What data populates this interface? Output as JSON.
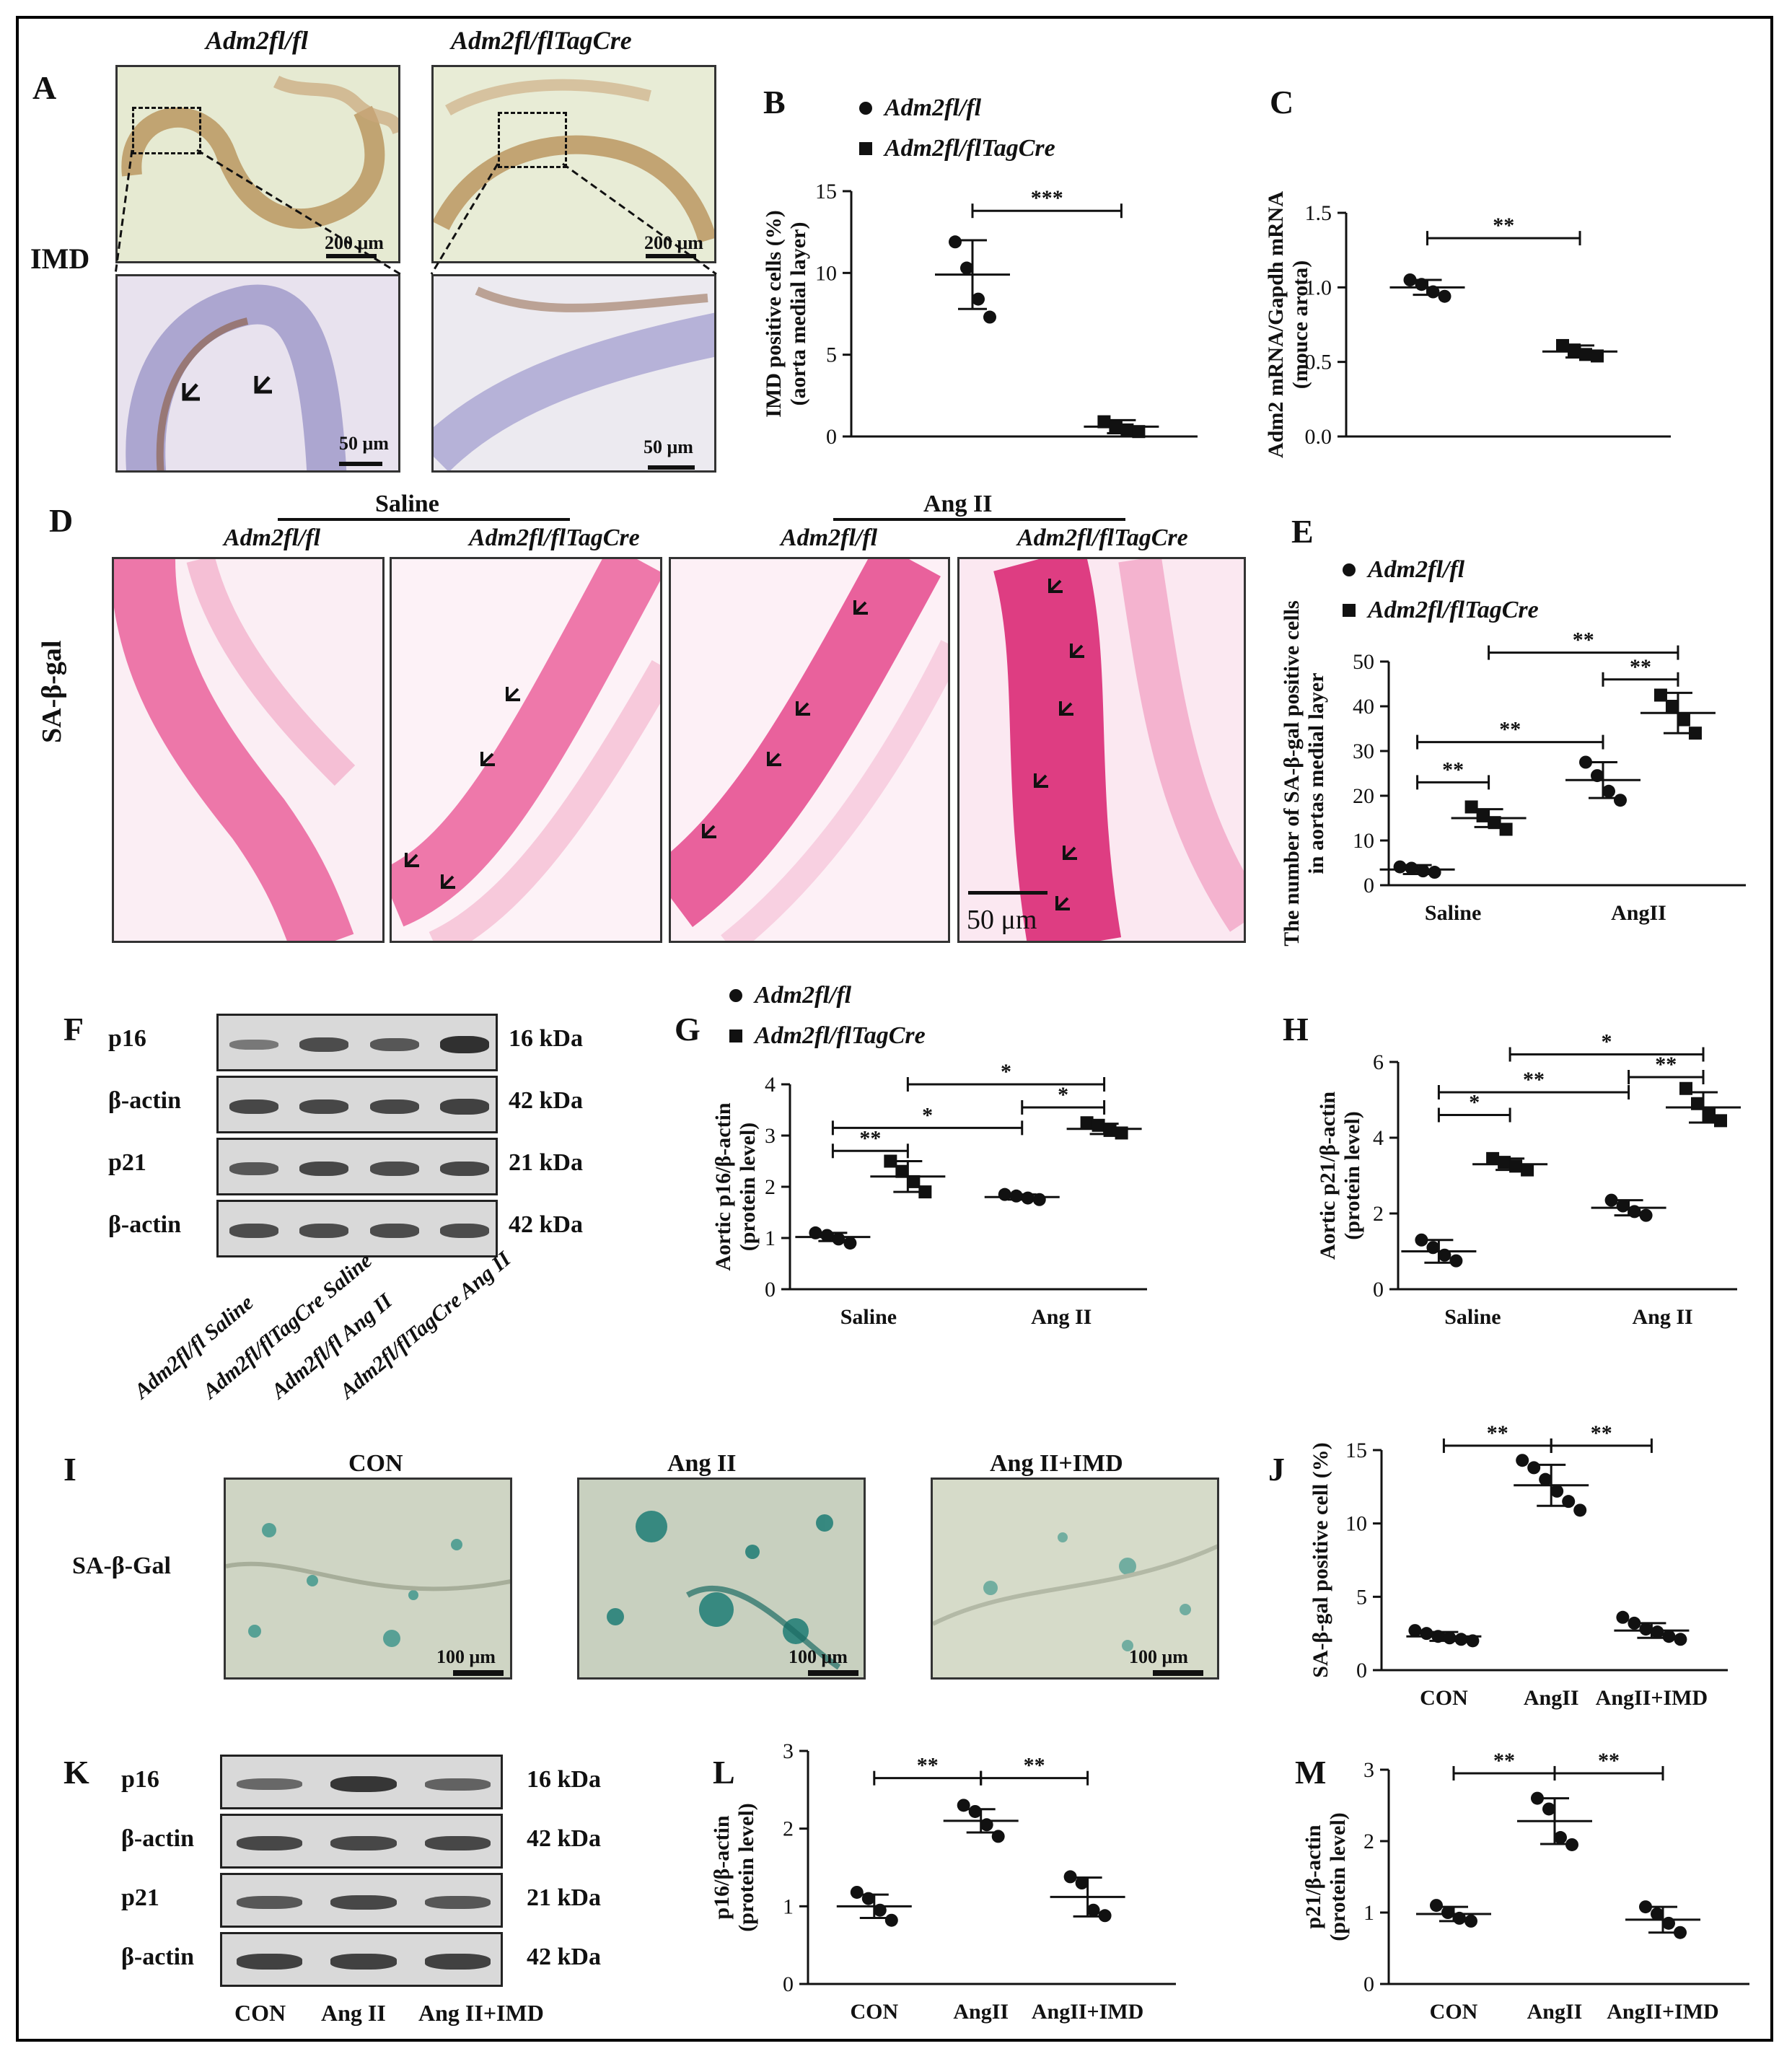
{
  "panel_letters": [
    "A",
    "B",
    "C",
    "D",
    "E",
    "F",
    "G",
    "H",
    "I",
    "J",
    "K",
    "L",
    "M"
  ],
  "panelA": {
    "col1": "Adm2fl/fl",
    "col2": "Adm2fl/flTagCre",
    "row_label": "IMD",
    "scale_top": "200 μm",
    "scale_bottom": "50 μm"
  },
  "panelD": {
    "group1": "Saline",
    "group2": "Ang II",
    "cols": [
      "Adm2fl/fl",
      "Adm2fl/flTagCre",
      "Adm2fl/fl",
      "Adm2fl/flTagCre"
    ],
    "row_label": "SA-β-gal",
    "scale": "50 μm"
  },
  "panelF": {
    "rows": [
      "p16",
      "β-actin",
      "p21",
      "β-actin"
    ],
    "kda": [
      "16 kDa",
      "42 kDa",
      "21 kDa",
      "42 kDa"
    ],
    "lanes": [
      "Adm2fl/fl Saline",
      "Adm2fl/flTagCre Saline",
      "Adm2fl/fl Ang II",
      "Adm2fl/flTagCre Ang II"
    ]
  },
  "panelI": {
    "cols": [
      "CON",
      "Ang II",
      "Ang II+IMD"
    ],
    "row_label": "SA-β-Gal",
    "scale": "100 μm"
  },
  "panelK": {
    "rows": [
      "p16",
      "β-actin",
      "p21",
      "β-actin"
    ],
    "kda": [
      "16 kDa",
      "42 kDa",
      "21 kDa",
      "42 kDa"
    ],
    "lanes": [
      "CON",
      "Ang II",
      "Ang II+IMD"
    ]
  },
  "colors": {
    "ihc_bg": "#e8ecd6",
    "he_pink": "#e0307a",
    "blue_green": "#2f8f86",
    "blot_bg": "#d9d9d9",
    "band": "#2a2a2a"
  },
  "chart_data": [
    {
      "id": "B",
      "type": "scatter",
      "legend": [
        "Adm2fl/fl",
        "Adm2fl/flTagCre"
      ],
      "ylabel": [
        "IMD positive cells (%)",
        "(aorta medial layer)"
      ],
      "ylim": [
        0,
        15
      ],
      "yticks": [
        0,
        5,
        10,
        15
      ],
      "categories": [
        "",
        ""
      ],
      "groups": [
        {
          "marker": "circle",
          "mean": 9.9,
          "sd": 2.1,
          "points": [
            11.9,
            10.3,
            8.4,
            7.3
          ]
        },
        {
          "marker": "square",
          "mean": 0.6,
          "sd": 0.4,
          "points": [
            0.9,
            0.6,
            0.4,
            0.3
          ]
        }
      ],
      "sig": [
        {
          "from": 0,
          "to": 1,
          "label": "***",
          "y": 13.8
        }
      ]
    },
    {
      "id": "C",
      "type": "scatter",
      "ylabel": [
        "Adm2 mRNA/Gapdh mRNA",
        "(mouce arota)"
      ],
      "ylim": [
        0,
        1.5
      ],
      "yticks": [
        "0.0",
        "0.5",
        "1.0",
        "1.5"
      ],
      "categories": [
        "",
        ""
      ],
      "groups": [
        {
          "marker": "circle",
          "mean": 1.0,
          "sd": 0.05,
          "points": [
            1.05,
            1.02,
            0.97,
            0.94
          ]
        },
        {
          "marker": "square",
          "mean": 0.57,
          "sd": 0.04,
          "points": [
            0.61,
            0.58,
            0.55,
            0.54
          ]
        }
      ],
      "sig": [
        {
          "from": 0,
          "to": 1,
          "label": "**",
          "y": 1.33
        }
      ]
    },
    {
      "id": "E",
      "type": "scatter",
      "legend": [
        "Adm2fl/fl",
        "Adm2fl/flTagCre"
      ],
      "ylabel": [
        "The number of SA-β-gal positive cells",
        "in aortas medial layer"
      ],
      "ylim": [
        0,
        50
      ],
      "yticks": [
        0,
        10,
        20,
        30,
        40,
        50
      ],
      "categories": [
        "Saline",
        "AngII"
      ],
      "groups": [
        {
          "marker": "circle",
          "mean": 3.5,
          "sd": 1.0,
          "points": [
            4.1,
            3.8,
            3.2,
            2.9
          ]
        },
        {
          "marker": "square",
          "mean": 15.0,
          "sd": 2.0,
          "points": [
            17.5,
            15.5,
            14.0,
            12.5
          ]
        },
        {
          "marker": "circle",
          "mean": 23.5,
          "sd": 4.0,
          "points": [
            27.5,
            24.5,
            21.0,
            19.0
          ]
        },
        {
          "marker": "square",
          "mean": 38.5,
          "sd": 4.5,
          "points": [
            42.5,
            40.0,
            37.0,
            34.0
          ]
        }
      ],
      "sig": [
        {
          "from": 2,
          "to": 3,
          "label": "**",
          "y": 46
        },
        {
          "from": 1,
          "to": 3,
          "label": "**",
          "y": 52
        },
        {
          "from": 0,
          "to": 2,
          "label": "**",
          "y": 32
        },
        {
          "from": 0,
          "to": 1,
          "label": "**",
          "y": 23
        }
      ]
    },
    {
      "id": "G",
      "type": "scatter",
      "legend": [
        "Adm2fl/fl",
        "Adm2fl/flTagCre"
      ],
      "ylabel": [
        "Aortic p16/β-actin",
        "(protein level)"
      ],
      "ylim": [
        0,
        4
      ],
      "yticks": [
        0,
        1,
        2,
        3,
        4
      ],
      "categories": [
        "Saline",
        "Ang II"
      ],
      "groups": [
        {
          "marker": "circle",
          "mean": 1.02,
          "sd": 0.08,
          "points": [
            1.1,
            1.05,
            0.98,
            0.9
          ]
        },
        {
          "marker": "square",
          "mean": 2.2,
          "sd": 0.3,
          "points": [
            2.5,
            2.3,
            2.1,
            1.9
          ]
        },
        {
          "marker": "circle",
          "mean": 1.8,
          "sd": 0.05,
          "points": [
            1.85,
            1.82,
            1.78,
            1.75
          ]
        },
        {
          "marker": "square",
          "mean": 3.13,
          "sd": 0.1,
          "points": [
            3.25,
            3.2,
            3.1,
            3.05
          ]
        }
      ],
      "sig": [
        {
          "from": 1,
          "to": 3,
          "label": "*",
          "y": 4.0
        },
        {
          "from": 2,
          "to": 3,
          "label": "*",
          "y": 3.55
        },
        {
          "from": 0,
          "to": 2,
          "label": "*",
          "y": 3.15
        },
        {
          "from": 0,
          "to": 1,
          "label": "**",
          "y": 2.7
        }
      ]
    },
    {
      "id": "H",
      "type": "scatter",
      "ylabel": [
        "Aortic p21/β-actin",
        "(protein level)"
      ],
      "ylim": [
        0,
        6
      ],
      "yticks": [
        0,
        2,
        4,
        6
      ],
      "categories": [
        "Saline",
        "Ang II"
      ],
      "groups": [
        {
          "marker": "circle",
          "mean": 1.0,
          "sd": 0.3,
          "points": [
            1.3,
            1.1,
            0.9,
            0.75
          ]
        },
        {
          "marker": "square",
          "mean": 3.3,
          "sd": 0.15,
          "points": [
            3.45,
            3.35,
            3.25,
            3.15
          ]
        },
        {
          "marker": "circle",
          "mean": 2.15,
          "sd": 0.2,
          "points": [
            2.35,
            2.2,
            2.05,
            1.95
          ]
        },
        {
          "marker": "square",
          "mean": 4.8,
          "sd": 0.4,
          "points": [
            5.3,
            4.9,
            4.6,
            4.45
          ]
        }
      ],
      "sig": [
        {
          "from": 1,
          "to": 3,
          "label": "*",
          "y": 6.2
        },
        {
          "from": 2,
          "to": 3,
          "label": "**",
          "y": 5.6
        },
        {
          "from": 0,
          "to": 2,
          "label": "**",
          "y": 5.2
        },
        {
          "from": 0,
          "to": 1,
          "label": "*",
          "y": 4.6
        }
      ]
    },
    {
      "id": "J",
      "type": "scatter",
      "ylabel": [
        "SA-β-gal positive cell (%)"
      ],
      "ylim": [
        0,
        15
      ],
      "yticks": [
        0,
        5,
        10,
        15
      ],
      "categories": [
        "CON",
        "AngII",
        "AngII+IMD"
      ],
      "groups": [
        {
          "marker": "circle",
          "mean": 2.3,
          "sd": 0.3,
          "points": [
            2.7,
            2.5,
            2.3,
            2.2,
            2.1,
            2.0
          ]
        },
        {
          "marker": "circle",
          "mean": 12.6,
          "sd": 1.4,
          "points": [
            14.3,
            13.8,
            13.0,
            12.2,
            11.5,
            10.9
          ]
        },
        {
          "marker": "circle",
          "mean": 2.7,
          "sd": 0.5,
          "points": [
            3.6,
            3.2,
            2.8,
            2.6,
            2.3,
            2.1
          ]
        }
      ],
      "sig": [
        {
          "from": 0,
          "to": 1,
          "label": "**",
          "y": 15.3
        },
        {
          "from": 1,
          "to": 2,
          "label": "**",
          "y": 15.3
        }
      ]
    },
    {
      "id": "L",
      "type": "scatter",
      "ylabel": [
        "p16/β-actin",
        "(protein level)"
      ],
      "ylim": [
        0,
        3
      ],
      "yticks": [
        0,
        1,
        2,
        3
      ],
      "categories": [
        "CON",
        "AngII",
        "AngII+IMD"
      ],
      "groups": [
        {
          "marker": "circle",
          "mean": 1.0,
          "sd": 0.15,
          "points": [
            1.18,
            1.1,
            0.95,
            0.82
          ]
        },
        {
          "marker": "circle",
          "mean": 2.1,
          "sd": 0.15,
          "points": [
            2.3,
            2.22,
            2.05,
            1.9
          ]
        },
        {
          "marker": "circle",
          "mean": 1.12,
          "sd": 0.25,
          "points": [
            1.38,
            1.3,
            0.95,
            0.88
          ]
        }
      ],
      "sig": [
        {
          "from": 0,
          "to": 1,
          "label": "**",
          "y": 2.65
        },
        {
          "from": 1,
          "to": 2,
          "label": "**",
          "y": 2.65
        }
      ]
    },
    {
      "id": "M",
      "type": "scatter",
      "ylabel": [
        "p21/β-actin",
        "(protein level)"
      ],
      "ylim": [
        0,
        3
      ],
      "yticks": [
        0,
        1,
        2,
        3
      ],
      "categories": [
        "CON",
        "AngII",
        "AngII+IMD"
      ],
      "groups": [
        {
          "marker": "circle",
          "mean": 0.98,
          "sd": 0.1,
          "points": [
            1.1,
            1.0,
            0.92,
            0.88
          ]
        },
        {
          "marker": "circle",
          "mean": 2.28,
          "sd": 0.32,
          "points": [
            2.6,
            2.45,
            2.05,
            1.95
          ]
        },
        {
          "marker": "circle",
          "mean": 0.9,
          "sd": 0.18,
          "points": [
            1.08,
            0.98,
            0.85,
            0.72
          ]
        }
      ],
      "sig": [
        {
          "from": 0,
          "to": 1,
          "label": "**",
          "y": 2.95
        },
        {
          "from": 1,
          "to": 2,
          "label": "**",
          "y": 2.95
        }
      ]
    }
  ]
}
